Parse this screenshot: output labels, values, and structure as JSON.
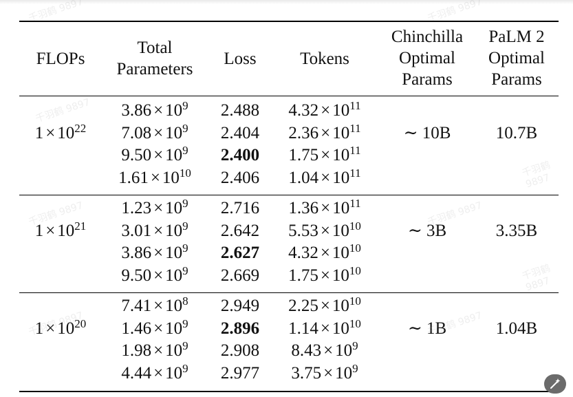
{
  "headers": {
    "flops": "FLOPs",
    "total_parameters": [
      "Total",
      "Parameters"
    ],
    "loss": "Loss",
    "tokens": "Tokens",
    "chinchilla": [
      "Chinchilla",
      "Optimal",
      "Params"
    ],
    "palm2": [
      "PaLM 2",
      "Optimal",
      "Params"
    ]
  },
  "groups": [
    {
      "flops": {
        "mantissa": "1",
        "exponent": "22"
      },
      "chinchilla": "∼ 10B",
      "palm2": "10.7B",
      "rows": [
        {
          "params": {
            "m": "3.86",
            "e": "9"
          },
          "loss": "2.488",
          "best": false,
          "tokens": {
            "m": "4.32",
            "e": "11"
          }
        },
        {
          "params": {
            "m": "7.08",
            "e": "9"
          },
          "loss": "2.404",
          "best": false,
          "tokens": {
            "m": "2.36",
            "e": "11"
          }
        },
        {
          "params": {
            "m": "9.50",
            "e": "9"
          },
          "loss": "2.400",
          "best": true,
          "tokens": {
            "m": "1.75",
            "e": "11"
          }
        },
        {
          "params": {
            "m": "1.61",
            "e": "10"
          },
          "loss": "2.406",
          "best": false,
          "tokens": {
            "m": "1.04",
            "e": "11"
          }
        }
      ]
    },
    {
      "flops": {
        "mantissa": "1",
        "exponent": "21"
      },
      "chinchilla": "∼ 3B",
      "palm2": "3.35B",
      "rows": [
        {
          "params": {
            "m": "1.23",
            "e": "9"
          },
          "loss": "2.716",
          "best": false,
          "tokens": {
            "m": "1.36",
            "e": "11"
          }
        },
        {
          "params": {
            "m": "3.01",
            "e": "9"
          },
          "loss": "2.642",
          "best": false,
          "tokens": {
            "m": "5.53",
            "e": "10"
          }
        },
        {
          "params": {
            "m": "3.86",
            "e": "9"
          },
          "loss": "2.627",
          "best": true,
          "tokens": {
            "m": "4.32",
            "e": "10"
          }
        },
        {
          "params": {
            "m": "9.50",
            "e": "9"
          },
          "loss": "2.669",
          "best": false,
          "tokens": {
            "m": "1.75",
            "e": "10"
          }
        }
      ]
    },
    {
      "flops": {
        "mantissa": "1",
        "exponent": "20"
      },
      "chinchilla": "∼ 1B",
      "palm2": "1.04B",
      "rows": [
        {
          "params": {
            "m": "7.41",
            "e": "8"
          },
          "loss": "2.949",
          "best": false,
          "tokens": {
            "m": "2.25",
            "e": "10"
          }
        },
        {
          "params": {
            "m": "1.46",
            "e": "9"
          },
          "loss": "2.896",
          "best": true,
          "tokens": {
            "m": "1.14",
            "e": "10"
          }
        },
        {
          "params": {
            "m": "1.98",
            "e": "9"
          },
          "loss": "2.908",
          "best": false,
          "tokens": {
            "m": "8.43",
            "e": "9"
          }
        },
        {
          "params": {
            "m": "4.44",
            "e": "9"
          },
          "loss": "2.977",
          "best": false,
          "tokens": {
            "m": "3.75",
            "e": "9"
          }
        }
      ]
    }
  ],
  "times_symbol": "×",
  "watermark": "千羽鹤 9897",
  "edit_icon": "magic-wand-icon"
}
